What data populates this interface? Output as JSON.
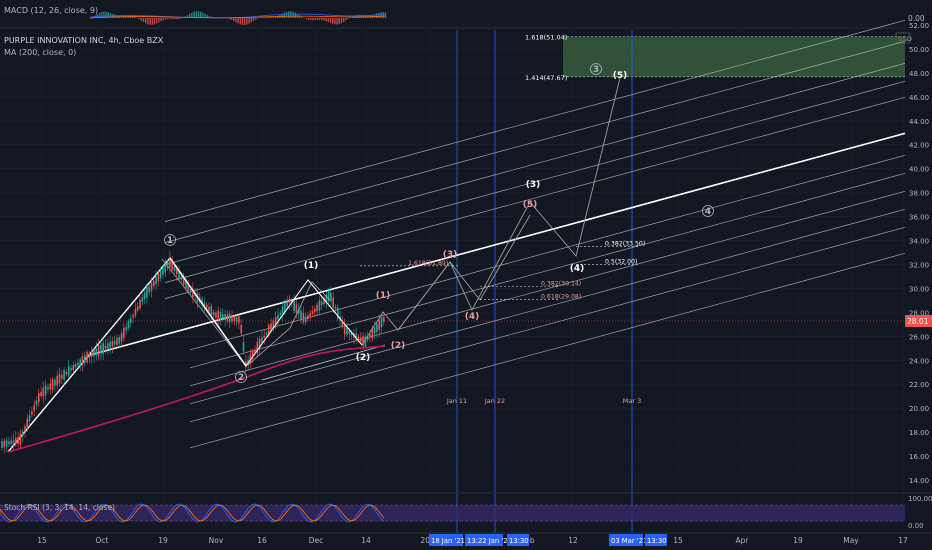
{
  "chart_data": {
    "type": "candlestick",
    "symbol_line": "PURPLE INNOVATION INC, 4h, Cboe BZX",
    "ma_label": "MA (200, close, 0)",
    "macd_label": "MACD (12, 26, close, 9)",
    "stoch_label": "Stoch RSI (3, 3, 14, 14, close)",
    "currency": "USD",
    "last_price": "28.01",
    "ylim": [
      14,
      52
    ],
    "price_ticks": [
      "52.00",
      "50.00",
      "48.00",
      "46.00",
      "44.00",
      "42.00",
      "40.00",
      "38.00",
      "36.00",
      "34.00",
      "32.00",
      "30.00",
      "28.00",
      "26.00",
      "24.00",
      "22.00",
      "20.00",
      "18.00",
      "16.00",
      "14.00"
    ],
    "macd_tick": "0.00",
    "stoch_ticks": [
      "100.00",
      "0.00"
    ],
    "x_ticks": [
      "15",
      "Oct",
      "19",
      "Nov",
      "16",
      "Dec",
      "14",
      "2021",
      "Feb",
      "12",
      "15",
      "Apr",
      "19",
      "May",
      "17"
    ],
    "x_tick_pos": [
      42,
      102,
      163,
      216,
      262,
      316,
      366,
      430,
      528,
      573,
      678,
      742,
      798,
      851,
      903
    ],
    "date_badges": [
      "18 Jan '21",
      "13:22 Jan '21",
      "13:30",
      "03 Mar '21",
      "13:30"
    ],
    "vline_labels": [
      "Jan 11",
      "Jan 22",
      "Mar 3"
    ],
    "fib_levels": [
      {
        "ratio": "1.618",
        "value": 51.04,
        "text": "1.618(51.04)"
      },
      {
        "ratio": "1.414",
        "value": 47.67,
        "text": "1.414(47.67)"
      },
      {
        "ratio": "1.618",
        "value": 31.89,
        "text": "1.618(31.89)"
      },
      {
        "ratio": "0.382",
        "value": 33.5,
        "text": "0.382(33.50)"
      },
      {
        "ratio": "0.5",
        "value": 32.0,
        "text": "0.5(32.00)"
      },
      {
        "ratio": "0.382",
        "value": 30.14,
        "text": "0.382(30.14)"
      },
      {
        "ratio": "0.618",
        "value": 29.08,
        "text": "0.618(29.08)"
      }
    ],
    "wave_labels": [
      "1",
      "2",
      "(1)",
      "(2)",
      "1",
      "2",
      "(3)",
      "(4)",
      "(5)",
      "(4)",
      "(3)",
      "3",
      "(5)",
      "4"
    ],
    "wave_labels_text": [
      "(1)",
      "(2)",
      "(1)",
      "(2)",
      "(1)",
      "(2)",
      "(3)",
      "(4)",
      "(5)",
      "(4)",
      "(3)",
      "(3)",
      "(5)",
      "(4)"
    ]
  },
  "colors": {
    "background": "#131722",
    "grid": "#1e2230",
    "up": "#26a69a",
    "down": "#ef5350",
    "ma": "#c2185b",
    "fork": "#ffffff",
    "zone": "#3e6b43",
    "vline": "#2962ff",
    "price_tag": "#ef5350",
    "rsi_band": "#3a2a6b"
  }
}
